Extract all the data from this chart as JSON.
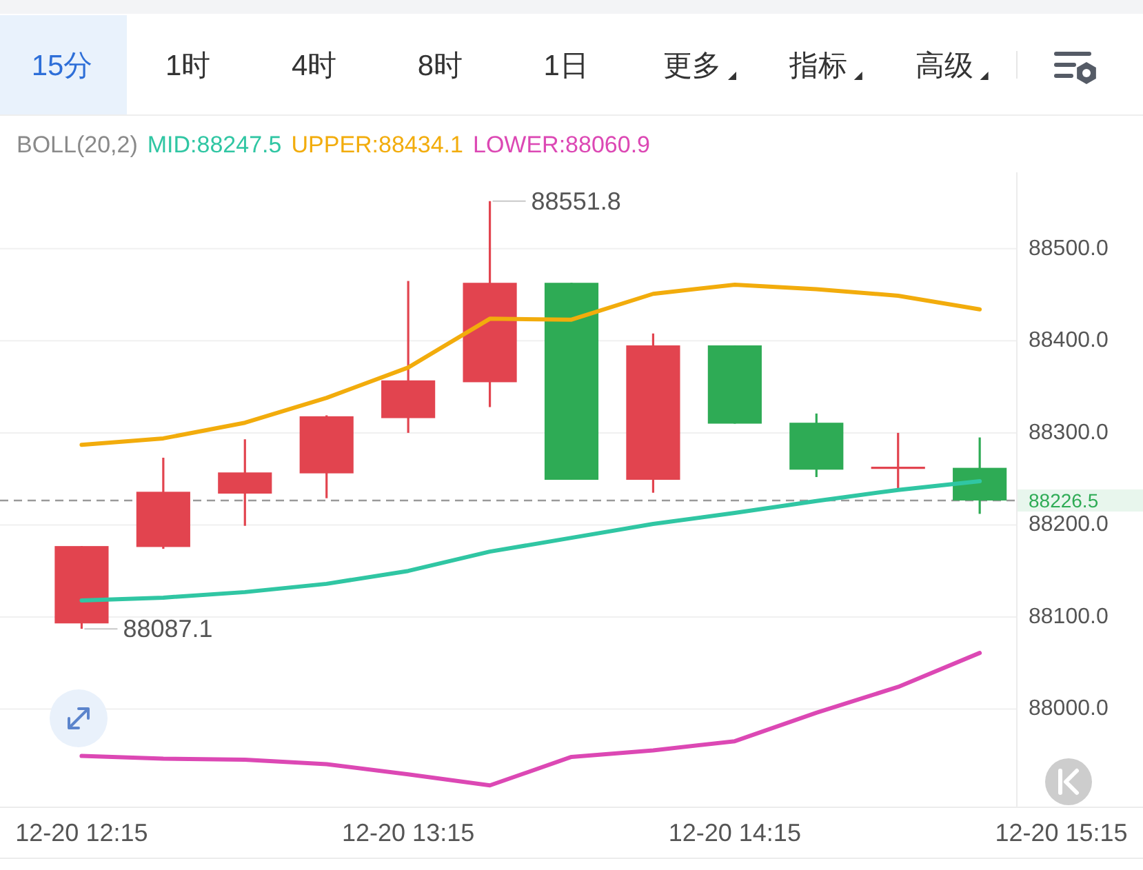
{
  "chart_data": {
    "type": "candlestick",
    "legend_title": "BOLL(20,2)",
    "legend": "top left",
    "grid": "y",
    "annotations": [
      "15分",
      "1时",
      "4时",
      "8时",
      "1日",
      "更多",
      "指标",
      "高级"
    ],
    "categories": [
      "12-20 12:15",
      null,
      null,
      null,
      "12-20 13:15",
      null,
      null,
      null,
      "12-20 14:15",
      null,
      null,
      null,
      "12-20 15:15"
    ],
    "ylim": [
      87894,
      88583
    ],
    "yticks": [
      {
        "value": 88000,
        "label": "88000.0"
      },
      {
        "value": 88100,
        "label": "88100.0"
      },
      {
        "value": 88200,
        "label": "88200.0"
      },
      {
        "value": 88300,
        "label": "88300.0"
      },
      {
        "value": 88400,
        "label": "88400.0"
      },
      {
        "value": 88500,
        "label": "88500.0"
      }
    ],
    "ohlc": [
      [
        88093,
        88177,
        88087.1,
        88177
      ],
      [
        88176,
        88273,
        88174,
        88236
      ],
      [
        88234,
        88293,
        88199,
        88257
      ],
      [
        88256,
        88319,
        88229,
        88318
      ],
      [
        88316,
        88465,
        88300,
        88357
      ],
      [
        88355,
        88551.8,
        88328,
        88463
      ],
      [
        88463,
        88463,
        88249,
        88249
      ],
      [
        88249,
        88408,
        88235,
        88395
      ],
      [
        88395,
        88395,
        88310,
        88310
      ],
      [
        88311,
        88321,
        88252,
        88260
      ],
      [
        88262,
        88300,
        88239,
        88262
      ],
      [
        88262,
        88295,
        88212,
        88226.5
      ],
      null
    ],
    "value_labels": [
      "88087.1",
      null,
      null,
      null,
      null,
      "88551.8",
      null,
      null,
      null,
      null,
      null,
      null,
      null
    ],
    "colors": [
      "#e2444f",
      "#e2444f",
      "#e2444f",
      "#e2444f",
      "#e2444f",
      "#e2444f",
      "#2eab55",
      "#e2444f",
      "#2eab55",
      "#2eab55",
      "#e2444f",
      "#2eab55",
      null
    ],
    "series": [
      {
        "name": "MID:88247.5",
        "type": "line",
        "color": "#30c6a3",
        "values": [
          88118,
          88121,
          88127,
          88136,
          88150,
          88171,
          88186,
          88201,
          88213,
          88226,
          88238,
          88247.5,
          null
        ]
      },
      {
        "name": "UPPER:88434.1",
        "type": "line",
        "color": "#f2ac0c",
        "values": [
          88287,
          88294,
          88311,
          88338,
          88371,
          88424,
          88423,
          88451,
          88461,
          88456,
          88449,
          88434.1,
          null
        ]
      },
      {
        "name": "LOWER:88060.9",
        "type": "line",
        "color": "#dc48b4",
        "values": [
          87949,
          87946,
          87945,
          87940,
          87929,
          87917,
          87948,
          87955,
          87965,
          87996,
          88024,
          88060.9,
          null
        ]
      }
    ],
    "ref_lines": [
      {
        "axis": "y",
        "value": 88226.5,
        "label": "88226.5",
        "color": "#9a9a9a",
        "line_style": "dashed"
      }
    ]
  }
}
